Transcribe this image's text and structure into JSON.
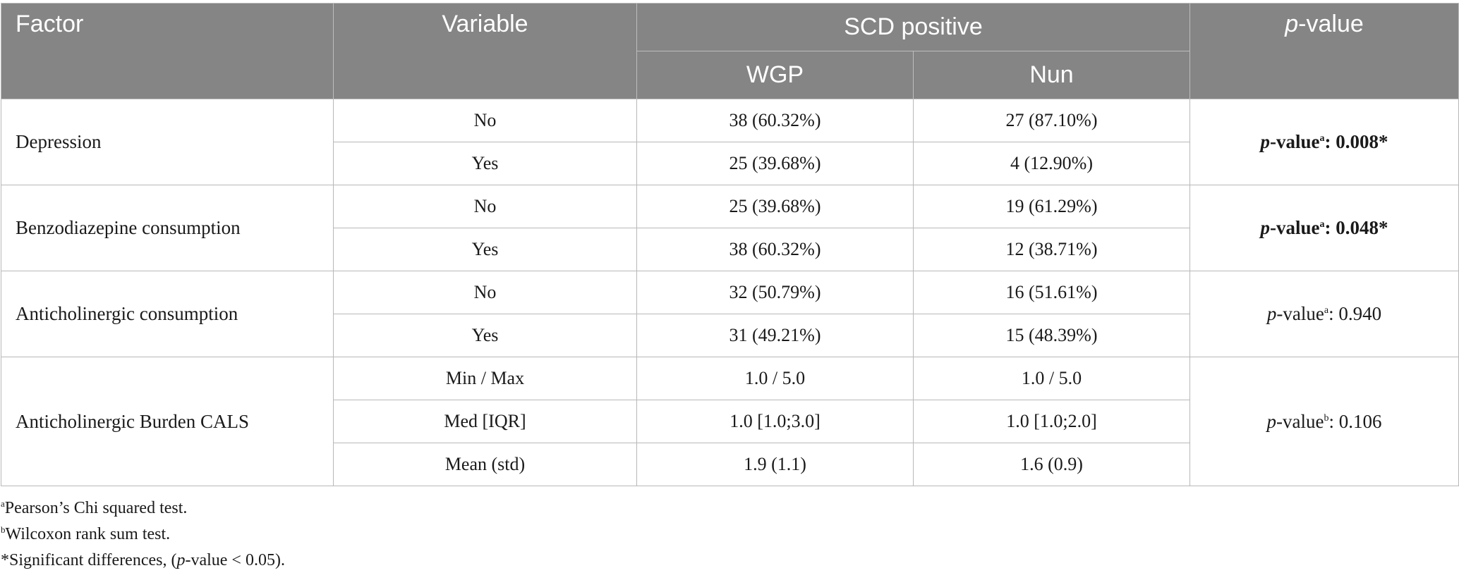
{
  "table": {
    "headers": {
      "factor": "Factor",
      "variable": "Variable",
      "scd_positive": "SCD positive",
      "wgp": "WGP",
      "nun": "Nun",
      "pvalue_italic": "p",
      "pvalue_rest": "-value"
    },
    "groups": [
      {
        "factor": "Depression",
        "rows": [
          {
            "variable": "No",
            "wgp": "38 (60.32%)",
            "nun": "27 (87.10%)"
          },
          {
            "variable": "Yes",
            "wgp": "25 (39.68%)",
            "nun": "4 (12.90%)"
          }
        ],
        "pvalue": {
          "p": "p",
          "label": "-value",
          "sup": "a",
          "value": ": 0.008*",
          "bold": true
        }
      },
      {
        "factor": "Benzodiazepine consumption",
        "rows": [
          {
            "variable": "No",
            "wgp": "25 (39.68%)",
            "nun": "19 (61.29%)"
          },
          {
            "variable": "Yes",
            "wgp": "38 (60.32%)",
            "nun": "12 (38.71%)"
          }
        ],
        "pvalue": {
          "p": "p",
          "label": "-value",
          "sup": "a",
          "value": ": 0.048*",
          "bold": true
        }
      },
      {
        "factor": "Anticholinergic consumption",
        "rows": [
          {
            "variable": "No",
            "wgp": "32 (50.79%)",
            "nun": "16 (51.61%)"
          },
          {
            "variable": "Yes",
            "wgp": "31 (49.21%)",
            "nun": "15 (48.39%)"
          }
        ],
        "pvalue": {
          "p": "p",
          "label": "-value",
          "sup": "a",
          "value": ": 0.940",
          "bold": false
        }
      },
      {
        "factor": "Anticholinergic Burden CALS",
        "rows": [
          {
            "variable": "Min / Max",
            "wgp": "1.0 / 5.0",
            "nun": "1.0 / 5.0"
          },
          {
            "variable": "Med [IQR]",
            "wgp": "1.0 [1.0;3.0]",
            "nun": "1.0 [1.0;2.0]"
          },
          {
            "variable": "Mean (std)",
            "wgp": "1.9 (1.1)",
            "nun": "1.6 (0.9)"
          }
        ],
        "pvalue": {
          "p": "p",
          "label": "-value",
          "sup": "b",
          "value": ": 0.106",
          "bold": false
        }
      }
    ]
  },
  "footnotes": {
    "a": {
      "mark": "a",
      "text": "Pearson’s Chi squared test."
    },
    "b": {
      "mark": "b",
      "text": "Wilcoxon rank sum test."
    },
    "star": {
      "prefix": "*Significant differences, (",
      "p": "p",
      "suffix": "-value < 0.05)."
    }
  }
}
